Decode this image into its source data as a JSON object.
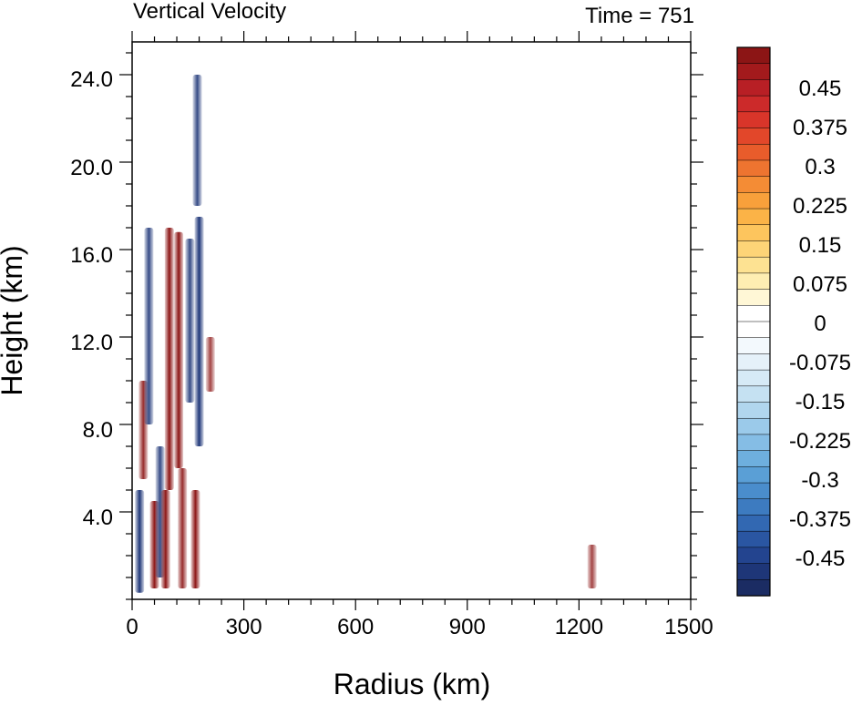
{
  "chart_data": {
    "type": "heatmap",
    "title": "Vertical Velocity",
    "time_label": "Time = 751",
    "xlabel": "Radius (km)",
    "ylabel": "Height (km)",
    "xlim": [
      0,
      1500
    ],
    "ylim": [
      0,
      25.5
    ],
    "x_ticks": [
      "0",
      "300",
      "600",
      "900",
      "1200",
      "1500"
    ],
    "y_ticks": [
      "4.0",
      "8.0",
      "12.0",
      "16.0",
      "20.0",
      "24.0"
    ],
    "colorbar": {
      "labels": [
        "0.45",
        "0.375",
        "0.3",
        "0.225",
        "0.15",
        "0.075",
        "0",
        "-0.075",
        "-0.15",
        "-0.225",
        "-0.3",
        "-0.375",
        "-0.45"
      ],
      "colors_top_to_bottom": [
        "#8c1515",
        "#a31a1c",
        "#b81f25",
        "#cc2a2a",
        "#d9352a",
        "#e2472a",
        "#e85c2b",
        "#ee7430",
        "#f48c35",
        "#f8a03b",
        "#fbb347",
        "#fdc55d",
        "#fdd477",
        "#fde292",
        "#feeeb2",
        "#fff7d6",
        "#ffffff",
        "#ffffff",
        "#f3f9fd",
        "#e5f1f9",
        "#d6eaf6",
        "#c5e1f2",
        "#b1d6ee",
        "#9bcaea",
        "#85bde5",
        "#6eafde",
        "#5a9fd6",
        "#4a8dcc",
        "#3d7bc0",
        "#3268b2",
        "#2a56a2",
        "#23448f",
        "#1e3678",
        "#1b2c63"
      ]
    },
    "features": [
      {
        "x": 20,
        "y0": 0.3,
        "y1": 5.0,
        "w": -0.5
      },
      {
        "x": 30,
        "y0": 5.5,
        "y1": 10.0,
        "w": 0.45
      },
      {
        "x": 45,
        "y0": 8.0,
        "y1": 17.0,
        "w": -0.45
      },
      {
        "x": 60,
        "y0": 0.5,
        "y1": 4.5,
        "w": 0.5
      },
      {
        "x": 75,
        "y0": 1.0,
        "y1": 7.0,
        "w": -0.45
      },
      {
        "x": 90,
        "y0": 0.5,
        "y1": 5.0,
        "w": 0.5
      },
      {
        "x": 100,
        "y0": 5.0,
        "y1": 17.0,
        "w": 0.5
      },
      {
        "x": 125,
        "y0": 6.0,
        "y1": 16.8,
        "w": 0.5
      },
      {
        "x": 135,
        "y0": 0.5,
        "y1": 6.0,
        "w": 0.45
      },
      {
        "x": 155,
        "y0": 9.0,
        "y1": 16.5,
        "w": -0.45
      },
      {
        "x": 170,
        "y0": 0.5,
        "y1": 5.0,
        "w": 0.5
      },
      {
        "x": 180,
        "y0": 7.0,
        "y1": 17.5,
        "w": -0.5
      },
      {
        "x": 175,
        "y0": 18.0,
        "y1": 24.0,
        "w": -0.45
      },
      {
        "x": 210,
        "y0": 9.5,
        "y1": 12.0,
        "w": 0.4
      },
      {
        "x": 1235,
        "y0": 0.5,
        "y1": 2.5,
        "w": 0.4
      }
    ]
  }
}
